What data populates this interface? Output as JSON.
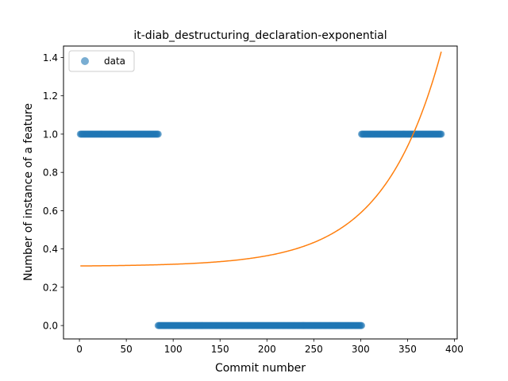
{
  "chart_data": {
    "type": "scatter",
    "title": "it-diab_destructuring_declaration-exponential",
    "xlabel": "Commit number",
    "ylabel": "Number of instance of a feature",
    "xlim": [
      -17,
      403
    ],
    "ylim": [
      -0.07,
      1.46
    ],
    "xticks": [
      0,
      50,
      100,
      150,
      200,
      250,
      300,
      350,
      400
    ],
    "yticks": [
      0.0,
      0.2,
      0.4,
      0.6,
      0.8,
      1.0,
      1.2,
      1.4
    ],
    "xtick_labels": [
      "0",
      "50",
      "100",
      "150",
      "200",
      "250",
      "300",
      "350",
      "400"
    ],
    "ytick_labels": [
      "0.0",
      "0.2",
      "0.4",
      "0.6",
      "0.8",
      "1.0",
      "1.2",
      "1.4"
    ],
    "legend": {
      "entries": [
        "data"
      ],
      "placement": "top-left"
    },
    "grid": false,
    "series": [
      {
        "name": "data",
        "kind": "scatter",
        "color": "#1f77b4",
        "alpha": 0.6,
        "segments": [
          {
            "x_start": 1,
            "x_end": 84,
            "y": 1
          },
          {
            "x_start": 84,
            "x_end": 301,
            "y": 0
          },
          {
            "x_start": 301,
            "x_end": 386,
            "y": 1
          }
        ]
      },
      {
        "kind": "line",
        "color": "#ff7f0e",
        "model": "exponential",
        "a": 0.0022,
        "b": 0.01615,
        "c": 0.309,
        "x_start": 1,
        "x_end": 386
      }
    ]
  }
}
